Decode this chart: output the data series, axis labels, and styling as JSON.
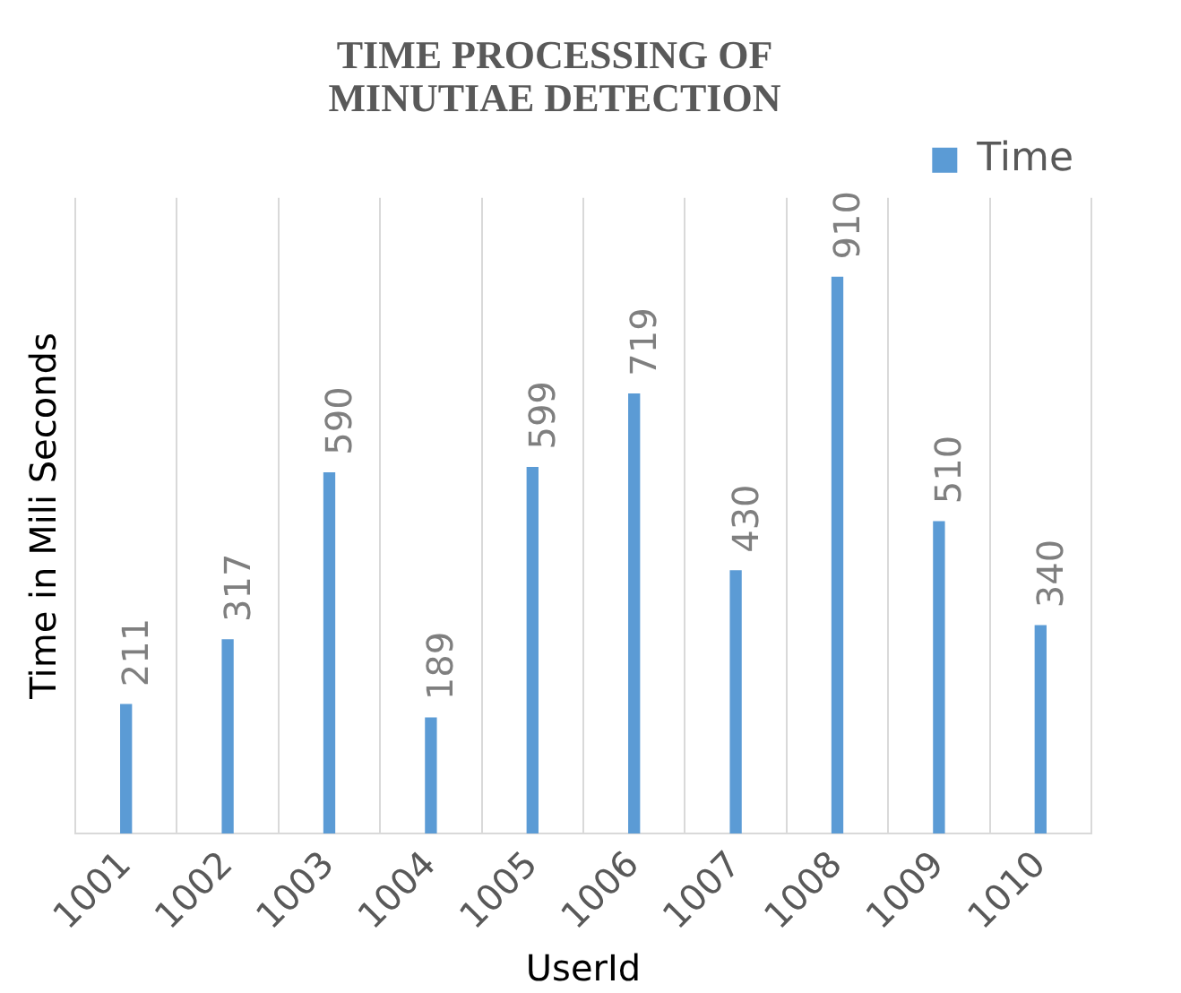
{
  "chart_data": {
    "type": "bar",
    "title": "TIME PROCESSING OF MINUTIAE DETECTION",
    "xlabel": "UserId",
    "ylabel": "Time in Mili Seconds",
    "categories": [
      "1001",
      "1002",
      "1003",
      "1004",
      "1005",
      "1006",
      "1007",
      "1008",
      "1009",
      "1010"
    ],
    "series": [
      {
        "name": "Time",
        "color": "#5b9bd5",
        "values": [
          211,
          317,
          590,
          189,
          599,
          719,
          430,
          910,
          510,
          340
        ]
      }
    ],
    "ylim": [
      0,
      1040
    ],
    "tick_labels": "x",
    "grid": "x",
    "legend": "top right",
    "data_labels": true
  }
}
